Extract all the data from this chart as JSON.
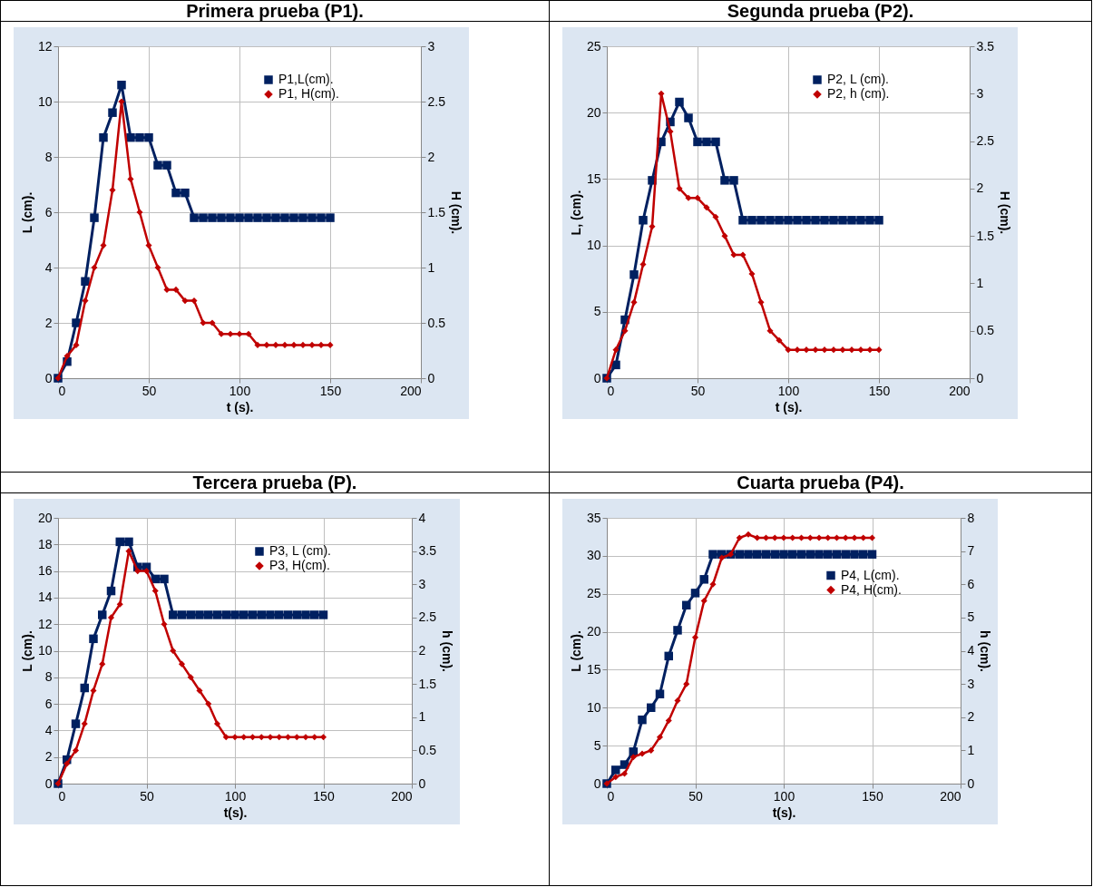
{
  "chart_data": [
    {
      "type": "line",
      "title": "Primera prueba (P1).",
      "xlabel": "t (s).",
      "ylabel": "L (cm).",
      "y2label": "H (cm).",
      "xlim": [
        0,
        200
      ],
      "xticks": [
        0,
        50,
        100,
        150,
        200
      ],
      "ylim": [
        0,
        12
      ],
      "yticks": [
        0,
        2,
        4,
        6,
        8,
        10,
        12
      ],
      "y2lim": [
        0,
        3
      ],
      "y2ticks": [
        0,
        0.5,
        1,
        1.5,
        2,
        2.5,
        3
      ],
      "grid": true,
      "legend": "top right",
      "x": [
        0,
        5,
        10,
        15,
        20,
        25,
        30,
        35,
        40,
        45,
        50,
        55,
        60,
        65,
        70,
        75,
        80,
        85,
        90,
        95,
        100,
        105,
        110,
        115,
        120,
        125,
        130,
        135,
        140,
        145,
        150
      ],
      "series": [
        {
          "name": "P1,L(cm).",
          "color": "#002060",
          "marker": "square",
          "values": [
            0,
            0.6,
            2,
            3.5,
            5.8,
            8.7,
            9.6,
            10.6,
            8.7,
            8.7,
            8.7,
            7.7,
            7.7,
            6.7,
            6.7,
            5.8,
            5.8,
            5.8,
            5.8,
            5.8,
            5.8,
            5.8,
            5.8,
            5.8,
            5.8,
            5.8,
            5.8,
            5.8,
            5.8,
            5.8,
            5.8
          ]
        },
        {
          "name": "P1, H(cm).",
          "color": "#c00000",
          "marker": "diamond",
          "axis": "y2",
          "values": [
            0,
            0.2,
            0.3,
            0.7,
            1.0,
            1.2,
            1.7,
            2.5,
            1.8,
            1.5,
            1.2,
            1.0,
            0.8,
            0.8,
            0.7,
            0.7,
            0.5,
            0.5,
            0.4,
            0.4,
            0.4,
            0.4,
            0.3,
            0.3,
            0.3,
            0.3,
            0.3,
            0.3,
            0.3,
            0.3,
            0.3
          ]
        }
      ]
    },
    {
      "type": "line",
      "title": "Segunda prueba (P2).",
      "xlabel": "t (s).",
      "ylabel": "L, (cm).",
      "y2label": "H (cm).",
      "xlim": [
        0,
        200
      ],
      "xticks": [
        0,
        50,
        100,
        150,
        200
      ],
      "ylim": [
        0,
        25
      ],
      "yticks": [
        0,
        5,
        10,
        15,
        20,
        25
      ],
      "y2lim": [
        0,
        3.5
      ],
      "y2ticks": [
        0,
        0.5,
        1,
        1.5,
        2,
        2.5,
        3,
        3.5
      ],
      "grid": true,
      "legend": "top right",
      "x": [
        0,
        5,
        10,
        15,
        20,
        25,
        30,
        35,
        40,
        45,
        50,
        55,
        60,
        65,
        70,
        75,
        80,
        85,
        90,
        95,
        100,
        105,
        110,
        115,
        120,
        125,
        130,
        135,
        140,
        145,
        150
      ],
      "series": [
        {
          "name": "P2, L (cm).",
          "color": "#002060",
          "marker": "square",
          "values": [
            0,
            1.0,
            4.4,
            7.8,
            11.9,
            14.9,
            17.8,
            19.3,
            20.8,
            19.6,
            17.8,
            17.8,
            17.8,
            14.9,
            14.9,
            11.9,
            11.9,
            11.9,
            11.9,
            11.9,
            11.9,
            11.9,
            11.9,
            11.9,
            11.9,
            11.9,
            11.9,
            11.9,
            11.9,
            11.9,
            11.9
          ]
        },
        {
          "name": "P2, h (cm).",
          "color": "#c00000",
          "marker": "diamond",
          "axis": "y2",
          "values": [
            0,
            0.3,
            0.5,
            0.8,
            1.2,
            1.6,
            3.0,
            2.6,
            2.0,
            1.9,
            1.9,
            1.8,
            1.7,
            1.5,
            1.3,
            1.3,
            1.1,
            0.8,
            0.5,
            0.4,
            0.3,
            0.3,
            0.3,
            0.3,
            0.3,
            0.3,
            0.3,
            0.3,
            0.3,
            0.3,
            0.3
          ]
        }
      ]
    },
    {
      "type": "line",
      "title": "Tercera prueba (P).",
      "xlabel": "t(s).",
      "ylabel": "L (cm).",
      "y2label": "h (cm).",
      "xlim": [
        0,
        200
      ],
      "xticks": [
        0,
        50,
        100,
        150,
        200
      ],
      "ylim": [
        0,
        20
      ],
      "yticks": [
        0,
        2,
        4,
        6,
        8,
        10,
        12,
        14,
        16,
        18,
        20
      ],
      "y2lim": [
        0,
        4
      ],
      "y2ticks": [
        0,
        0.5,
        1,
        1.5,
        2,
        2.5,
        3,
        3.5,
        4
      ],
      "grid": true,
      "legend": "top right",
      "x": [
        0,
        5,
        10,
        15,
        20,
        25,
        30,
        35,
        40,
        45,
        50,
        55,
        60,
        65,
        70,
        75,
        80,
        85,
        90,
        95,
        100,
        105,
        110,
        115,
        120,
        125,
        130,
        135,
        140,
        145,
        150
      ],
      "series": [
        {
          "name": "P3, L (cm).",
          "color": "#002060",
          "marker": "square",
          "values": [
            0,
            1.8,
            4.5,
            7.2,
            10.9,
            12.7,
            14.5,
            18.2,
            18.2,
            16.3,
            16.3,
            15.4,
            15.4,
            12.7,
            12.7,
            12.7,
            12.7,
            12.7,
            12.7,
            12.7,
            12.7,
            12.7,
            12.7,
            12.7,
            12.7,
            12.7,
            12.7,
            12.7,
            12.7,
            12.7,
            12.7
          ]
        },
        {
          "name": "P3, H(cm).",
          "color": "#c00000",
          "marker": "diamond",
          "axis": "y2",
          "values": [
            0,
            0.3,
            0.5,
            0.9,
            1.4,
            1.8,
            2.5,
            2.7,
            3.5,
            3.2,
            3.2,
            2.9,
            2.4,
            2.0,
            1.8,
            1.6,
            1.4,
            1.2,
            0.9,
            0.7,
            0.7,
            0.7,
            0.7,
            0.7,
            0.7,
            0.7,
            0.7,
            0.7,
            0.7,
            0.7,
            0.7
          ]
        }
      ]
    },
    {
      "type": "line",
      "title": "Cuarta prueba (P4).",
      "xlabel": "t(s).",
      "ylabel": "L (cm).",
      "y2label": "h (cm).",
      "xlim": [
        0,
        200
      ],
      "xticks": [
        0,
        50,
        100,
        150,
        200
      ],
      "ylim": [
        0,
        35
      ],
      "yticks": [
        0,
        5,
        10,
        15,
        20,
        25,
        30,
        35
      ],
      "y2lim": [
        0,
        8
      ],
      "y2ticks": [
        0,
        1,
        2,
        3,
        4,
        5,
        6,
        7,
        8
      ],
      "grid": true,
      "legend": "right",
      "x": [
        0,
        5,
        10,
        15,
        20,
        25,
        30,
        35,
        40,
        45,
        50,
        55,
        60,
        65,
        70,
        75,
        80,
        85,
        90,
        95,
        100,
        105,
        110,
        115,
        120,
        125,
        130,
        135,
        140,
        145,
        150
      ],
      "series": [
        {
          "name": "P4, L(cm).",
          "color": "#002060",
          "marker": "square",
          "values": [
            0,
            1.8,
            2.5,
            4.2,
            8.4,
            10,
            11.8,
            16.8,
            20.2,
            23.5,
            25.1,
            26.9,
            30.2,
            30.2,
            30.2,
            30.2,
            30.2,
            30.2,
            30.2,
            30.2,
            30.2,
            30.2,
            30.2,
            30.2,
            30.2,
            30.2,
            30.2,
            30.2,
            30.2,
            30.2,
            30.2
          ]
        },
        {
          "name": "P4,  H(cm).",
          "color": "#c00000",
          "marker": "diamond",
          "axis": "y2",
          "values": [
            0,
            0.2,
            0.3,
            0.8,
            0.9,
            1.0,
            1.4,
            1.9,
            2.5,
            3.0,
            4.4,
            5.5,
            6.0,
            6.8,
            6.9,
            7.4,
            7.5,
            7.4,
            7.4,
            7.4,
            7.4,
            7.4,
            7.4,
            7.4,
            7.4,
            7.4,
            7.4,
            7.4,
            7.4,
            7.4,
            7.4
          ]
        }
      ]
    }
  ]
}
